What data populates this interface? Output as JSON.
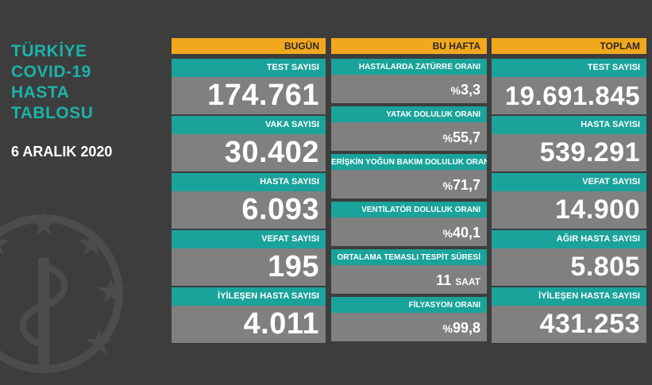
{
  "title_lines": [
    "TÜRKİYE",
    "COVID-19",
    "HASTA",
    "TABLOSU"
  ],
  "date": "6 ARALIK 2020",
  "colors": {
    "background": "#3d3d3d",
    "header": "#f2a81d",
    "label": "#1aa39a",
    "value": "#808080",
    "title": "#1bb3a9"
  },
  "today": {
    "header": "BUGÜN",
    "cards": [
      {
        "label": "TEST SAYISI",
        "value": "174.761"
      },
      {
        "label": "VAKA SAYISI",
        "value": "30.402"
      },
      {
        "label": "HASTA SAYISI",
        "value": "6.093"
      },
      {
        "label": "VEFAT SAYISI",
        "value": "195"
      },
      {
        "label": "İYİLEŞEN HASTA SAYISI",
        "value": "4.011"
      }
    ]
  },
  "week": {
    "header": "BU HAFTA",
    "cards": [
      {
        "label": "HASTALARDA ZATÜRRE ORANI",
        "prefix": "%",
        "value": "3,3",
        "unit": ""
      },
      {
        "label": "YATAK DOLULUK ORANI",
        "prefix": "%",
        "value": "55,7",
        "unit": ""
      },
      {
        "label": "ERİŞKİN YOĞUN BAKIM DOLULUK ORANI",
        "prefix": "%",
        "value": "71,7",
        "unit": ""
      },
      {
        "label": "VENTİLATÖR DOLULUK ORANI",
        "prefix": "%",
        "value": "40,1",
        "unit": ""
      },
      {
        "label": "ORTALAMA TEMASLI TESPİT SÜRESİ",
        "prefix": "",
        "value": "11",
        "unit": "SAAT"
      },
      {
        "label": "FİLYASYON ORANI",
        "prefix": "%",
        "value": "99,8",
        "unit": ""
      }
    ]
  },
  "total": {
    "header": "TOPLAM",
    "cards": [
      {
        "label": "TEST SAYISI",
        "value": "19.691.845"
      },
      {
        "label": "HASTA SAYISI",
        "value": "539.291"
      },
      {
        "label": "VEFAT SAYISI",
        "value": "14.900"
      },
      {
        "label": "AĞIR HASTA SAYISI",
        "value": "5.805"
      },
      {
        "label": "İYİLEŞEN HASTA SAYISI",
        "value": "431.253"
      }
    ]
  }
}
